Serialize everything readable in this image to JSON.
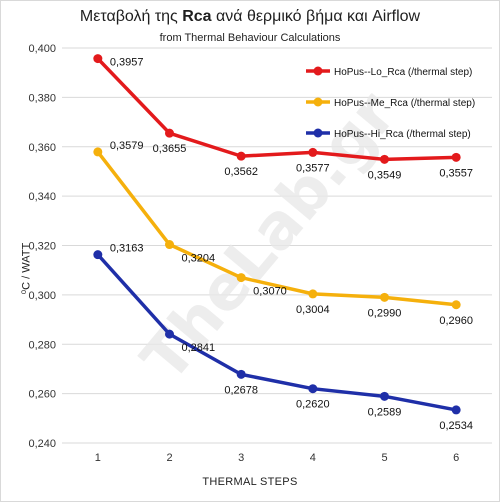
{
  "chart_data": {
    "type": "line",
    "title_prefix": "Μεταβολή της ",
    "title_bold": "Rca",
    "title_suffix": " ανά θερμικό βήμα και  Airflow",
    "subtitle": "from Thermal Behaviour Calculations",
    "xlabel": "THERMAL  STEPS",
    "ylabel": "⁰C / WATT",
    "categories": [
      "1",
      "2",
      "3",
      "4",
      "5",
      "6"
    ],
    "ylim": [
      0.24,
      0.4
    ],
    "yticks": [
      "0,240",
      "0,260",
      "0,280",
      "0,300",
      "0,320",
      "0,340",
      "0,360",
      "0,380",
      "0,400"
    ],
    "grid": true,
    "legend_position": "top-right",
    "watermark": "TheLab.gr",
    "series": [
      {
        "name": "HoPus--Lo_Rca (/thermal step)",
        "color": "#e31a1c",
        "values": [
          0.3957,
          0.3655,
          0.3562,
          0.3577,
          0.3549,
          0.3557
        ],
        "labels": [
          "0,3957",
          "0,3655",
          "0,3562",
          "0,3577",
          "0,3549",
          "0,3557"
        ]
      },
      {
        "name": "HoPus--Me_Rca (/thermal step)",
        "color": "#f5b00c",
        "values": [
          0.3579,
          0.3204,
          0.307,
          0.3004,
          0.299,
          0.296
        ],
        "labels": [
          "0,3579",
          "0,3204",
          "0,3070",
          "0,3004",
          "0,2990",
          "0,2960"
        ]
      },
      {
        "name": "HoPus--Hi_Rca (/thermal step)",
        "color": "#1f2fa8",
        "values": [
          0.3163,
          0.2841,
          0.2678,
          0.262,
          0.2589,
          0.2534
        ],
        "labels": [
          "0,3163",
          "0,2841",
          "0,2678",
          "0,2620",
          "0,2589",
          "0,2534"
        ]
      }
    ]
  }
}
